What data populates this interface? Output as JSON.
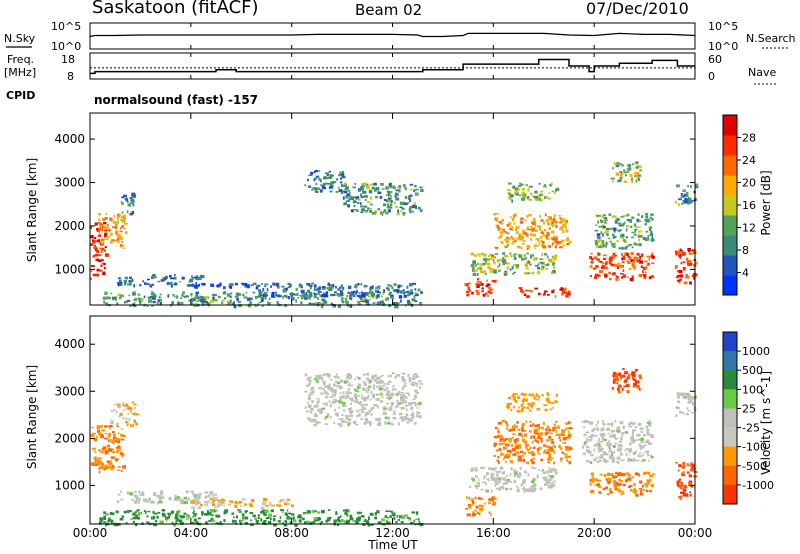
{
  "header": {
    "station": "Saskatoon (fitACF)",
    "beam": "Beam 02",
    "date": "07/Dec/2010"
  },
  "panels": {
    "nsky_label": "N.Sky",
    "nsearch_label": "N.Search",
    "count_ticks": [
      "10^5",
      "10^0"
    ],
    "freq_label_1": "Freq.",
    "freq_label_2": "[MHz]",
    "freq_ticks": [
      "18",
      "8"
    ],
    "nave_label": "Nave",
    "nave_ticks": [
      "60",
      "0"
    ],
    "cpid_label": "CPID",
    "cpid_text": "normalsound (fast) -157"
  },
  "chart_data": [
    {
      "type": "line",
      "name": "sky-noise",
      "x_range": [
        0,
        24
      ],
      "series": [
        {
          "name": "N.Sky",
          "x": [
            0,
            0.2,
            1,
            2,
            3,
            4,
            5,
            6,
            7,
            8,
            9,
            10,
            11,
            12,
            13,
            13.2,
            14,
            14.8,
            15,
            16,
            17,
            18,
            19,
            20,
            21,
            22,
            23,
            24
          ],
          "level": [
            2.4,
            2.6,
            2.6,
            2.7,
            2.7,
            2.7,
            2.7,
            2.7,
            2.7,
            2.7,
            2.8,
            2.8,
            2.8,
            2.8,
            2.7,
            2.4,
            2.4,
            2.6,
            3.0,
            3.0,
            3.0,
            3.0,
            2.7,
            2.6,
            3.0,
            2.8,
            2.8,
            2.6
          ]
        }
      ]
    },
    {
      "type": "line",
      "name": "frequency-nave",
      "x_range": [
        0,
        24
      ],
      "series": [
        {
          "name": "Freq.",
          "unit": "MHz",
          "x": [
            0,
            0.2,
            0.2,
            5.0,
            5.0,
            5.8,
            5.8,
            13.2,
            13.2,
            14.8,
            14.8,
            16.2,
            16.2,
            17.8,
            17.8,
            19.0,
            19.0,
            19.8,
            19.8,
            20.0,
            20.0,
            21.0,
            21.0,
            22.3,
            22.3,
            23.3,
            23.3,
            24
          ],
          "y": [
            9.0,
            9.0,
            10.0,
            10.0,
            11.0,
            11.0,
            10.0,
            10.0,
            11.0,
            11.0,
            14.0,
            14.0,
            14.0,
            14.0,
            16.5,
            16.5,
            13.0,
            13.0,
            10.0,
            10.0,
            13.0,
            13.0,
            14.5,
            14.5,
            16.0,
            16.0,
            13.0,
            13.0
          ]
        },
        {
          "name": "Nave",
          "x": [
            0,
            24
          ],
          "y": [
            30,
            30
          ]
        }
      ],
      "y_ticks_left": [
        8,
        18
      ],
      "y_ticks_right": [
        0,
        60
      ]
    },
    {
      "type": "heatmap",
      "name": "power",
      "x_range": [
        0,
        24
      ],
      "ylim": [
        180,
        4600
      ],
      "ylabel": "Slant Range [km]",
      "y_ticks": [
        1000,
        2000,
        3000,
        4000
      ],
      "colorbar": {
        "label": "Power [dB]",
        "ticks": [
          4,
          8,
          12,
          16,
          20,
          24,
          28
        ],
        "range": [
          0,
          32
        ]
      },
      "regions": [
        {
          "t": [
            0.0,
            0.6
          ],
          "r": [
            800,
            2100
          ],
          "v": 28
        },
        {
          "t": [
            0.3,
            1.4
          ],
          "r": [
            1500,
            2300
          ],
          "v": 20
        },
        {
          "t": [
            1.2,
            1.8
          ],
          "r": [
            2300,
            2800
          ],
          "v": 8
        },
        {
          "t": [
            1.0,
            4.5
          ],
          "r": [
            650,
            900
          ],
          "v": 6
        },
        {
          "t": [
            4.0,
            8.0
          ],
          "r": [
            600,
            700
          ],
          "v": 5
        },
        {
          "t": [
            0.5,
            13.1
          ],
          "r": [
            180,
            500
          ],
          "v": 10
        },
        {
          "t": [
            6.5,
            13.0
          ],
          "r": [
            400,
            700
          ],
          "v": 7
        },
        {
          "t": [
            8.5,
            10.0
          ],
          "r": [
            2800,
            3300
          ],
          "v": 8
        },
        {
          "t": [
            10.0,
            13.1
          ],
          "r": [
            2300,
            3000
          ],
          "v": 10
        },
        {
          "t": [
            14.8,
            16.0
          ],
          "r": [
            400,
            800
          ],
          "v": 26
        },
        {
          "t": [
            15.0,
            18.5
          ],
          "r": [
            900,
            1400
          ],
          "v": 14
        },
        {
          "t": [
            16.0,
            19.0
          ],
          "r": [
            1500,
            2300
          ],
          "v": 20
        },
        {
          "t": [
            16.5,
            18.5
          ],
          "r": [
            2600,
            3000
          ],
          "v": 14
        },
        {
          "t": [
            17.0,
            19.0
          ],
          "r": [
            400,
            600
          ],
          "v": 28
        },
        {
          "t": [
            19.8,
            22.3
          ],
          "r": [
            800,
            1400
          ],
          "v": 26
        },
        {
          "t": [
            20.0,
            22.3
          ],
          "r": [
            1500,
            2300
          ],
          "v": 12
        },
        {
          "t": [
            20.6,
            21.8
          ],
          "r": [
            3000,
            3500
          ],
          "v": 14
        },
        {
          "t": [
            23.2,
            24.0
          ],
          "r": [
            700,
            1500
          ],
          "v": 26
        },
        {
          "t": [
            23.2,
            24.0
          ],
          "r": [
            2500,
            3000
          ],
          "v": 10
        }
      ]
    },
    {
      "type": "heatmap",
      "name": "velocity",
      "x_range": [
        0,
        24
      ],
      "ylim": [
        180,
        4600
      ],
      "ylabel": "Slant Range [km]",
      "xlabel": "Time UT",
      "x_ticks": [
        "00:00",
        "04:00",
        "08:00",
        "12:00",
        "16:00",
        "20:00",
        "00:00"
      ],
      "y_ticks": [
        1000,
        2000,
        3000,
        4000
      ],
      "colorbar": {
        "label": "Velocity [m s^-1]",
        "ticks": [
          "1000",
          "500",
          "100",
          "25",
          "-25",
          "-100",
          "-500",
          "-1000"
        ]
      },
      "regions": [
        {
          "t": [
            0.0,
            1.3
          ],
          "r": [
            1300,
            2300
          ],
          "v": -300
        },
        {
          "t": [
            0.8,
            1.8
          ],
          "r": [
            2300,
            2800
          ],
          "v": -60
        },
        {
          "t": [
            0.3,
            13.1
          ],
          "r": [
            180,
            500
          ],
          "v": 80
        },
        {
          "t": [
            1.0,
            5.0
          ],
          "r": [
            650,
            900
          ],
          "v": 0
        },
        {
          "t": [
            4.0,
            8.0
          ],
          "r": [
            550,
            750
          ],
          "v": -60
        },
        {
          "t": [
            8.5,
            13.1
          ],
          "r": [
            2300,
            3400
          ],
          "v": 0
        },
        {
          "t": [
            14.8,
            16.0
          ],
          "r": [
            400,
            800
          ],
          "v": -300
        },
        {
          "t": [
            15.0,
            18.5
          ],
          "r": [
            900,
            1400
          ],
          "v": 0
        },
        {
          "t": [
            16.0,
            19.0
          ],
          "r": [
            1500,
            2400
          ],
          "v": -300
        },
        {
          "t": [
            16.5,
            18.5
          ],
          "r": [
            2600,
            3000
          ],
          "v": -150
        },
        {
          "t": [
            19.8,
            22.3
          ],
          "r": [
            800,
            1300
          ],
          "v": -300
        },
        {
          "t": [
            19.5,
            22.3
          ],
          "r": [
            1500,
            2400
          ],
          "v": 0
        },
        {
          "t": [
            20.6,
            21.8
          ],
          "r": [
            3000,
            3500
          ],
          "v": -700
        },
        {
          "t": [
            23.2,
            24.0
          ],
          "r": [
            700,
            1500
          ],
          "v": -700
        },
        {
          "t": [
            23.2,
            24.0
          ],
          "r": [
            2500,
            3000
          ],
          "v": 0
        }
      ]
    }
  ],
  "colors": {
    "power_scale": [
      "#0033ff",
      "#2255bb",
      "#3a8a7a",
      "#55a35a",
      "#c8c820",
      "#ffaa00",
      "#ff6a00",
      "#ff2a00",
      "#e00000"
    ],
    "velocity_scale": [
      "#2244cc",
      "#3377aa",
      "#2a8a3a",
      "#66cc44",
      "#c0c0b8",
      "#c8c8c0",
      "#ff9900",
      "#ff6600",
      "#ff3300",
      "#ff0000"
    ]
  }
}
